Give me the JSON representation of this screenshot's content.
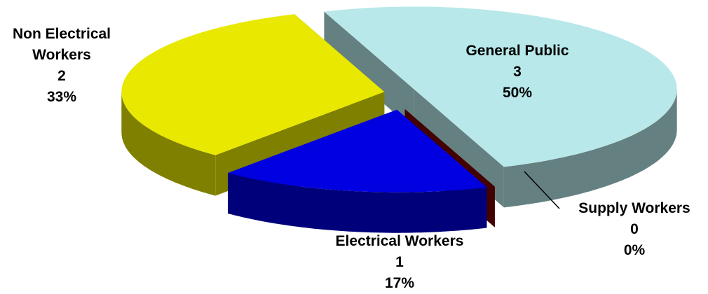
{
  "chart_data": {
    "type": "pie3d",
    "categories": [
      "General Public",
      "Supply Workers",
      "Electrical Workers",
      "Non Electrical Workers"
    ],
    "values": [
      3,
      0,
      1,
      2
    ],
    "percent_labels": [
      "50%",
      "0%",
      "17%",
      "33%"
    ],
    "colors": [
      "#b8e8ea",
      "#7a0000",
      "#0000e0",
      "#e8e800"
    ]
  }
}
